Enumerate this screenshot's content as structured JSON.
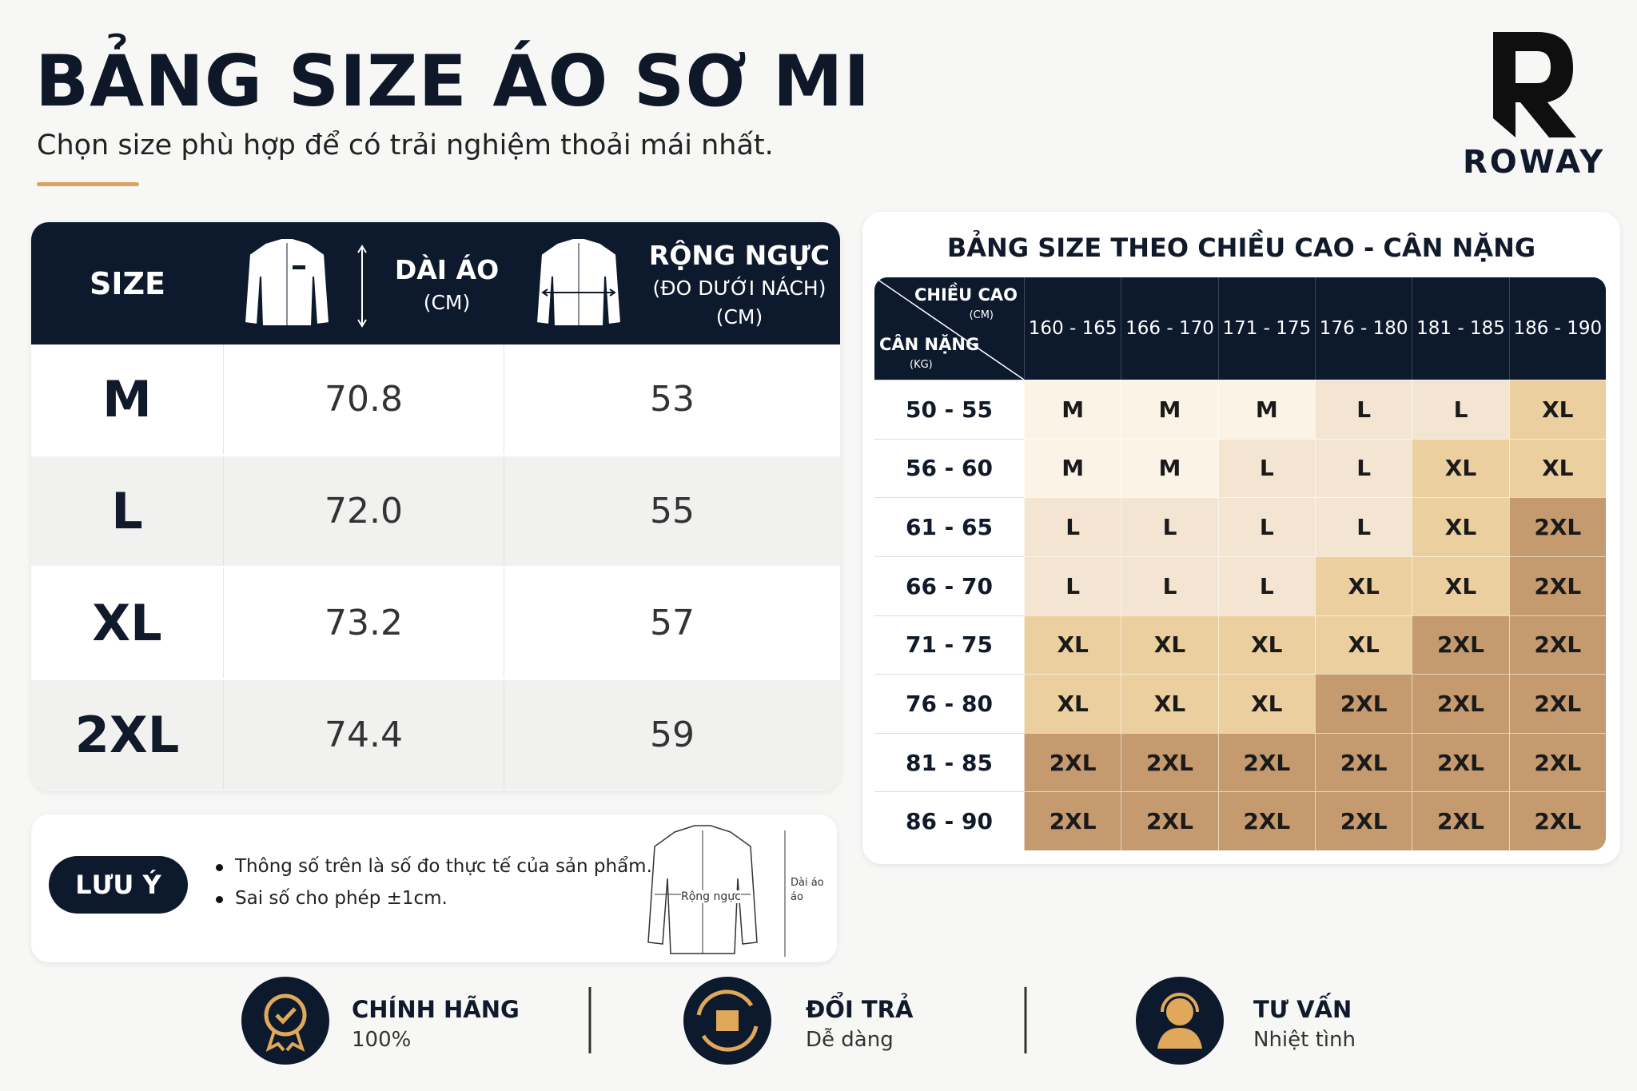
{
  "header": {
    "title": "BẢNG SIZE ÁO SƠ MI",
    "subtitle": "Chọn size phù hợp để có trải nghiệm thoải mái nhất.",
    "brand": "ROWAY"
  },
  "size_table": {
    "headers": {
      "size": "SIZE",
      "length": "DÀI ÁO",
      "length_unit": "(CM)",
      "chest": "RỘNG NGỰC",
      "chest_note": "(ĐO DƯỚI NÁCH)",
      "chest_unit": "(CM)"
    },
    "rows": [
      [
        "M",
        "70.8",
        "53"
      ],
      [
        "L",
        "72.0",
        "55"
      ],
      [
        "XL",
        "73.2",
        "57"
      ],
      [
        "2XL",
        "74.4",
        "59"
      ]
    ]
  },
  "note": {
    "badge": "LƯU Ý",
    "items": [
      "Thông số trên là số đo thực tế của sản phẩm.",
      "Sai số cho phép ±1cm."
    ],
    "diagram": {
      "chest": "Rộng ngực",
      "length": [
        "Dài áo",
        "áo"
      ]
    }
  },
  "matrix": {
    "title": "BẢNG SIZE THEO CHIỀU CAO - CÂN NẶNG",
    "corner": {
      "height": "CHIỀU CAO",
      "height_unit": "(CM)",
      "weight": "CÂN NẶNG",
      "weight_unit": "(KG)"
    },
    "columns": [
      "160 - 165",
      "166 - 170",
      "171 - 175",
      "176 - 180",
      "181 - 185",
      "186 - 190"
    ],
    "rows": [
      {
        "label": "50 - 55",
        "cells": [
          "M",
          "M",
          "M",
          "L",
          "L",
          "XL"
        ]
      },
      {
        "label": "56 - 60",
        "cells": [
          "M",
          "M",
          "L",
          "L",
          "XL",
          "XL"
        ]
      },
      {
        "label": "61 - 65",
        "cells": [
          "L",
          "L",
          "L",
          "L",
          "XL",
          "2XL"
        ]
      },
      {
        "label": "66 - 70",
        "cells": [
          "L",
          "L",
          "L",
          "XL",
          "XL",
          "2XL"
        ]
      },
      {
        "label": "71 - 75",
        "cells": [
          "XL",
          "XL",
          "XL",
          "XL",
          "2XL",
          "2XL"
        ]
      },
      {
        "label": "76 - 80",
        "cells": [
          "XL",
          "XL",
          "XL",
          "2XL",
          "2XL",
          "2XL"
        ]
      },
      {
        "label": "81 - 85",
        "cells": [
          "2XL",
          "2XL",
          "2XL",
          "2XL",
          "2XL",
          "2XL"
        ]
      },
      {
        "label": "86 - 90",
        "cells": [
          "2XL",
          "2XL",
          "2XL",
          "2XL",
          "2XL",
          "2XL"
        ]
      }
    ],
    "palette": {
      "M": "#fbf3e5",
      "L": "#f3e5d1",
      "XL": "#eccf9e",
      "2XL": "#c49a6e"
    }
  },
  "features": [
    {
      "title": "CHÍNH HÃNG",
      "subtitle": "100%"
    },
    {
      "title": "ĐỔI TRẢ",
      "subtitle": "Dễ dàng"
    },
    {
      "title": "TƯ VẤN",
      "subtitle": "Nhiệt tình"
    }
  ]
}
